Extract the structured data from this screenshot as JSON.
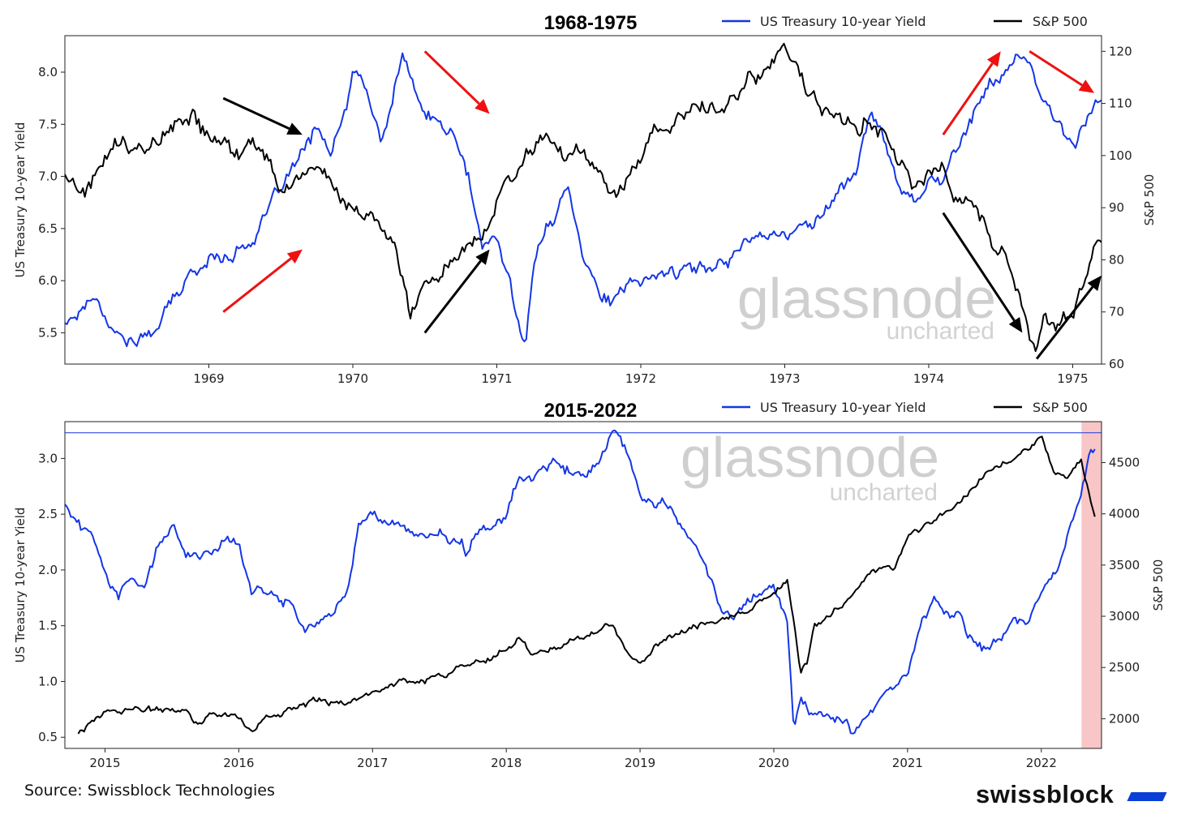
{
  "colors": {
    "yield": "#1436e6",
    "spx": "#000000",
    "arrow_red": "#ee1111",
    "arrow_black": "#000000",
    "shade": "#f8c6c6"
  },
  "footer": {
    "source": "Source: Swissblock Technologies",
    "brand": "swissblock"
  },
  "watermark": {
    "main": "glassnode",
    "sub": "uncharted"
  },
  "chart_data": [
    {
      "type": "line",
      "title": "1968-1975",
      "ylabel": "US Treasury 10-year Yield",
      "y2label": "S&P 500",
      "xlim": [
        1968.0,
        1975.2
      ],
      "ylim": [
        5.2,
        8.35
      ],
      "y2lim": [
        60,
        123
      ],
      "x_ticks": [
        1969,
        1970,
        1971,
        1972,
        1973,
        1974,
        1975
      ],
      "y_ticks": [
        5.5,
        6.0,
        6.5,
        7.0,
        7.5,
        8.0
      ],
      "y_tick_labels": [
        "5.5",
        "6.0",
        "6.5",
        "7.0",
        "7.5",
        "8.0"
      ],
      "y2_ticks": [
        60,
        70,
        80,
        90,
        100,
        110,
        120
      ],
      "legend_position": "top-right",
      "series": [
        {
          "name": "US Treasury 10-year Yield",
          "axis": "left",
          "x": [
            1968.0,
            1968.1,
            1968.2,
            1968.35,
            1968.5,
            1968.6,
            1968.75,
            1968.9,
            1969.0,
            1969.1,
            1969.2,
            1969.3,
            1969.4,
            1969.5,
            1969.6,
            1969.7,
            1969.75,
            1969.85,
            1969.95,
            1970.0,
            1970.1,
            1970.2,
            1970.3,
            1970.35,
            1970.4,
            1970.5,
            1970.6,
            1970.7,
            1970.8,
            1970.9,
            1971.0,
            1971.1,
            1971.2,
            1971.25,
            1971.35,
            1971.5,
            1971.6,
            1971.7,
            1971.8,
            1971.9,
            1972.0,
            1972.2,
            1972.4,
            1972.6,
            1972.8,
            1973.0,
            1973.1,
            1973.2,
            1973.3,
            1973.4,
            1973.5,
            1973.6,
            1973.7,
            1973.8,
            1973.9,
            1974.0,
            1974.1,
            1974.2,
            1974.3,
            1974.4,
            1974.5,
            1974.6,
            1974.7,
            1974.8,
            1974.9,
            1975.0,
            1975.1,
            1975.2
          ],
          "values": [
            5.6,
            5.7,
            5.9,
            5.5,
            5.4,
            5.5,
            5.8,
            6.1,
            6.2,
            6.25,
            6.3,
            6.4,
            6.6,
            6.9,
            7.1,
            7.3,
            7.5,
            7.2,
            7.6,
            8.0,
            7.8,
            7.3,
            7.9,
            8.2,
            7.9,
            7.6,
            7.5,
            7.4,
            7.0,
            6.3,
            6.4,
            5.9,
            5.4,
            6.1,
            6.5,
            6.9,
            6.3,
            5.9,
            5.8,
            5.9,
            6.0,
            6.1,
            6.1,
            6.2,
            6.5,
            6.4,
            6.5,
            6.6,
            6.7,
            6.9,
            7.1,
            7.6,
            7.3,
            6.9,
            6.8,
            7.0,
            6.95,
            7.3,
            7.6,
            7.8,
            8.0,
            8.15,
            8.0,
            7.7,
            7.5,
            7.3,
            7.6,
            7.7
          ]
        },
        {
          "name": "S&P 500",
          "axis": "right",
          "x": [
            1968.0,
            1968.1,
            1968.2,
            1968.3,
            1968.4,
            1968.5,
            1968.6,
            1968.75,
            1968.9,
            1969.0,
            1969.1,
            1969.2,
            1969.3,
            1969.4,
            1969.5,
            1969.6,
            1969.7,
            1969.8,
            1969.9,
            1970.0,
            1970.1,
            1970.2,
            1970.3,
            1970.4,
            1970.5,
            1970.6,
            1970.7,
            1970.8,
            1970.9,
            1971.0,
            1971.1,
            1971.2,
            1971.3,
            1971.4,
            1971.5,
            1971.6,
            1971.7,
            1971.8,
            1971.9,
            1972.0,
            1972.2,
            1972.4,
            1972.6,
            1972.8,
            1973.0,
            1973.1,
            1973.2,
            1973.3,
            1973.4,
            1973.5,
            1973.6,
            1973.7,
            1973.8,
            1973.9,
            1974.0,
            1974.1,
            1974.2,
            1974.3,
            1974.4,
            1974.5,
            1974.6,
            1974.7,
            1974.75,
            1974.8,
            1974.9,
            1975.0,
            1975.1,
            1975.2
          ],
          "values": [
            97,
            93,
            95,
            101,
            104,
            100,
            103,
            105,
            108,
            104,
            102,
            100,
            104,
            99,
            92,
            95,
            98,
            97,
            93,
            90,
            88,
            85,
            82,
            70,
            75,
            78,
            82,
            84,
            86,
            92,
            96,
            100,
            104,
            102,
            98,
            100,
            96,
            92,
            96,
            101,
            106,
            108,
            110,
            116,
            120,
            116,
            112,
            108,
            106,
            104,
            108,
            104,
            98,
            94,
            96,
            98,
            92,
            90,
            86,
            82,
            76,
            66,
            62,
            68,
            66,
            70,
            78,
            85
          ]
        }
      ],
      "annotations": [
        {
          "type": "arrow",
          "color": "red",
          "from": [
            1969.1,
            5.7
          ],
          "to": [
            1969.65,
            6.3
          ]
        },
        {
          "type": "arrow",
          "color": "black",
          "from": [
            1969.1,
            7.75
          ],
          "to": [
            1969.65,
            7.4
          ]
        },
        {
          "type": "arrow",
          "color": "black",
          "from": [
            1970.5,
            5.5
          ],
          "to": [
            1970.95,
            6.3
          ]
        },
        {
          "type": "arrow",
          "color": "red",
          "from": [
            1970.5,
            8.2
          ],
          "to": [
            1970.95,
            7.6
          ]
        },
        {
          "type": "arrow",
          "color": "red",
          "from": [
            1974.1,
            7.4
          ],
          "to": [
            1974.5,
            8.2
          ]
        },
        {
          "type": "arrow",
          "color": "red",
          "from": [
            1974.7,
            8.2
          ],
          "to": [
            1975.15,
            7.8
          ]
        },
        {
          "type": "arrow",
          "color": "black",
          "from": [
            1974.1,
            6.65
          ],
          "to": [
            1974.65,
            5.5
          ]
        },
        {
          "type": "arrow",
          "color": "black",
          "from": [
            1974.75,
            5.25
          ],
          "to": [
            1975.2,
            6.05
          ]
        }
      ]
    },
    {
      "type": "line",
      "title": "2015-2022",
      "ylabel": "US Treasury 10-year Yield",
      "y2label": "S&P 500",
      "xlim": [
        2014.7,
        2022.45
      ],
      "ylim": [
        0.4,
        3.33
      ],
      "y2lim": [
        1710,
        4900
      ],
      "x_ticks": [
        2015,
        2016,
        2017,
        2018,
        2019,
        2020,
        2021,
        2022
      ],
      "y_ticks": [
        0.5,
        1.0,
        1.5,
        2.0,
        2.5,
        3.0
      ],
      "y_tick_labels": [
        "0.5",
        "1.0",
        "1.5",
        "2.0",
        "2.5",
        "3.0"
      ],
      "y2_ticks": [
        2000,
        2500,
        3000,
        3500,
        4000,
        4500
      ],
      "legend_position": "top-right",
      "hline": {
        "value": 3.23,
        "axis": "left"
      },
      "shaded_region": [
        2022.3,
        2022.45
      ],
      "series": [
        {
          "name": "US Treasury 10-year Yield",
          "axis": "left",
          "x": [
            2014.7,
            2014.8,
            2014.9,
            2015.0,
            2015.1,
            2015.2,
            2015.3,
            2015.4,
            2015.5,
            2015.6,
            2015.7,
            2015.8,
            2015.9,
            2016.0,
            2016.1,
            2016.2,
            2016.3,
            2016.4,
            2016.5,
            2016.6,
            2016.7,
            2016.8,
            2016.9,
            2017.0,
            2017.1,
            2017.2,
            2017.3,
            2017.4,
            2017.5,
            2017.6,
            2017.7,
            2017.8,
            2017.9,
            2018.0,
            2018.1,
            2018.2,
            2018.3,
            2018.4,
            2018.5,
            2018.6,
            2018.7,
            2018.8,
            2018.9,
            2019.0,
            2019.1,
            2019.2,
            2019.3,
            2019.4,
            2019.5,
            2019.6,
            2019.7,
            2019.8,
            2019.9,
            2020.0,
            2020.1,
            2020.15,
            2020.2,
            2020.3,
            2020.4,
            2020.5,
            2020.6,
            2020.7,
            2020.8,
            2020.9,
            2021.0,
            2021.1,
            2021.2,
            2021.3,
            2021.4,
            2021.5,
            2021.6,
            2021.7,
            2021.8,
            2021.9,
            2022.0,
            2022.1,
            2022.2,
            2022.3,
            2022.35,
            2022.4
          ],
          "values": [
            2.6,
            2.4,
            2.3,
            2.0,
            1.8,
            2.0,
            1.9,
            2.2,
            2.4,
            2.2,
            2.1,
            2.2,
            2.3,
            2.2,
            1.8,
            1.8,
            1.75,
            1.7,
            1.45,
            1.55,
            1.6,
            1.8,
            2.4,
            2.5,
            2.45,
            2.4,
            2.3,
            2.25,
            2.3,
            2.25,
            2.15,
            2.35,
            2.4,
            2.45,
            2.85,
            2.85,
            2.9,
            2.95,
            2.9,
            2.85,
            3.0,
            3.2,
            3.05,
            2.7,
            2.65,
            2.6,
            2.4,
            2.3,
            2.05,
            1.7,
            1.6,
            1.75,
            1.85,
            1.85,
            1.55,
            0.6,
            0.95,
            0.7,
            0.65,
            0.7,
            0.55,
            0.7,
            0.8,
            0.9,
            1.1,
            1.6,
            1.7,
            1.6,
            1.55,
            1.3,
            1.3,
            1.4,
            1.55,
            1.5,
            1.75,
            2.0,
            2.35,
            2.7,
            3.0,
            3.1
          ]
        },
        {
          "name": "S&P 500",
          "axis": "right",
          "x": [
            2014.8,
            2014.9,
            2015.0,
            2015.2,
            2015.4,
            2015.6,
            2015.7,
            2015.8,
            2015.9,
            2016.0,
            2016.1,
            2016.2,
            2016.4,
            2016.6,
            2016.8,
            2016.9,
            2017.0,
            2017.2,
            2017.4,
            2017.6,
            2017.8,
            2018.0,
            2018.1,
            2018.2,
            2018.4,
            2018.6,
            2018.8,
            2018.9,
            2019.0,
            2019.2,
            2019.4,
            2019.6,
            2019.8,
            2020.0,
            2020.1,
            2020.2,
            2020.25,
            2020.3,
            2020.5,
            2020.7,
            2020.9,
            2021.0,
            2021.2,
            2021.4,
            2021.6,
            2021.8,
            2022.0,
            2022.1,
            2022.2,
            2022.3,
            2022.4
          ],
          "values": [
            1870,
            2000,
            2050,
            2070,
            2100,
            2100,
            1940,
            2050,
            2080,
            2010,
            1870,
            2000,
            2080,
            2170,
            2140,
            2200,
            2280,
            2360,
            2400,
            2470,
            2560,
            2700,
            2800,
            2650,
            2700,
            2800,
            2900,
            2650,
            2550,
            2800,
            2900,
            2950,
            3050,
            3250,
            3350,
            2450,
            2550,
            2900,
            3100,
            3400,
            3500,
            3750,
            3950,
            4150,
            4400,
            4550,
            4750,
            4400,
            4350,
            4500,
            4000
          ]
        }
      ]
    }
  ]
}
